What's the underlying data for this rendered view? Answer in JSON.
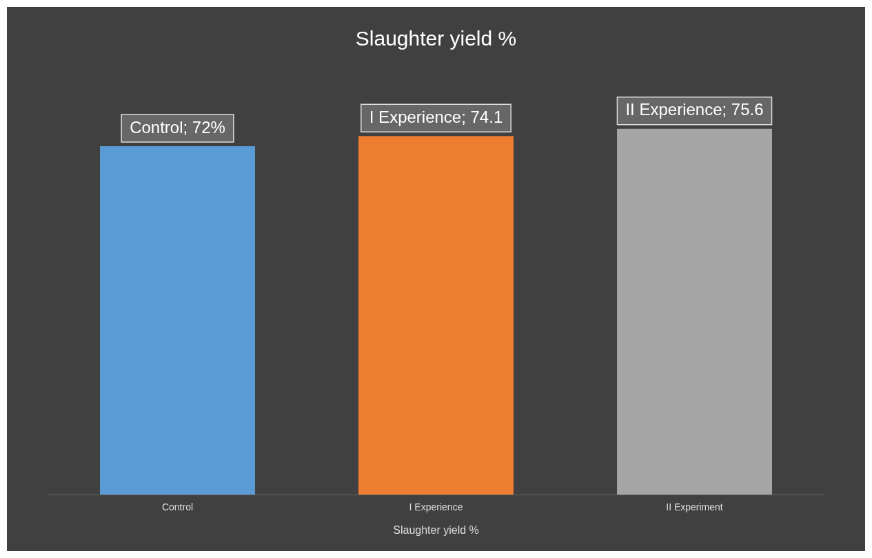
{
  "chart_data": {
    "type": "bar",
    "title": "Slaughter yield %",
    "xlabel": "Slaughter yield %",
    "categories": [
      "Control",
      "I Experience",
      "II Experiment"
    ],
    "values": [
      72,
      74.1,
      75.6
    ],
    "colors": [
      "#5b9bd5",
      "#ed7d31",
      "#a5a5a5"
    ],
    "value_labels": [
      "Control; 72%",
      "I Experience; 74.1",
      "II Experience; 75.6"
    ],
    "tick_labels": "x",
    "grid": false,
    "legend": false
  }
}
